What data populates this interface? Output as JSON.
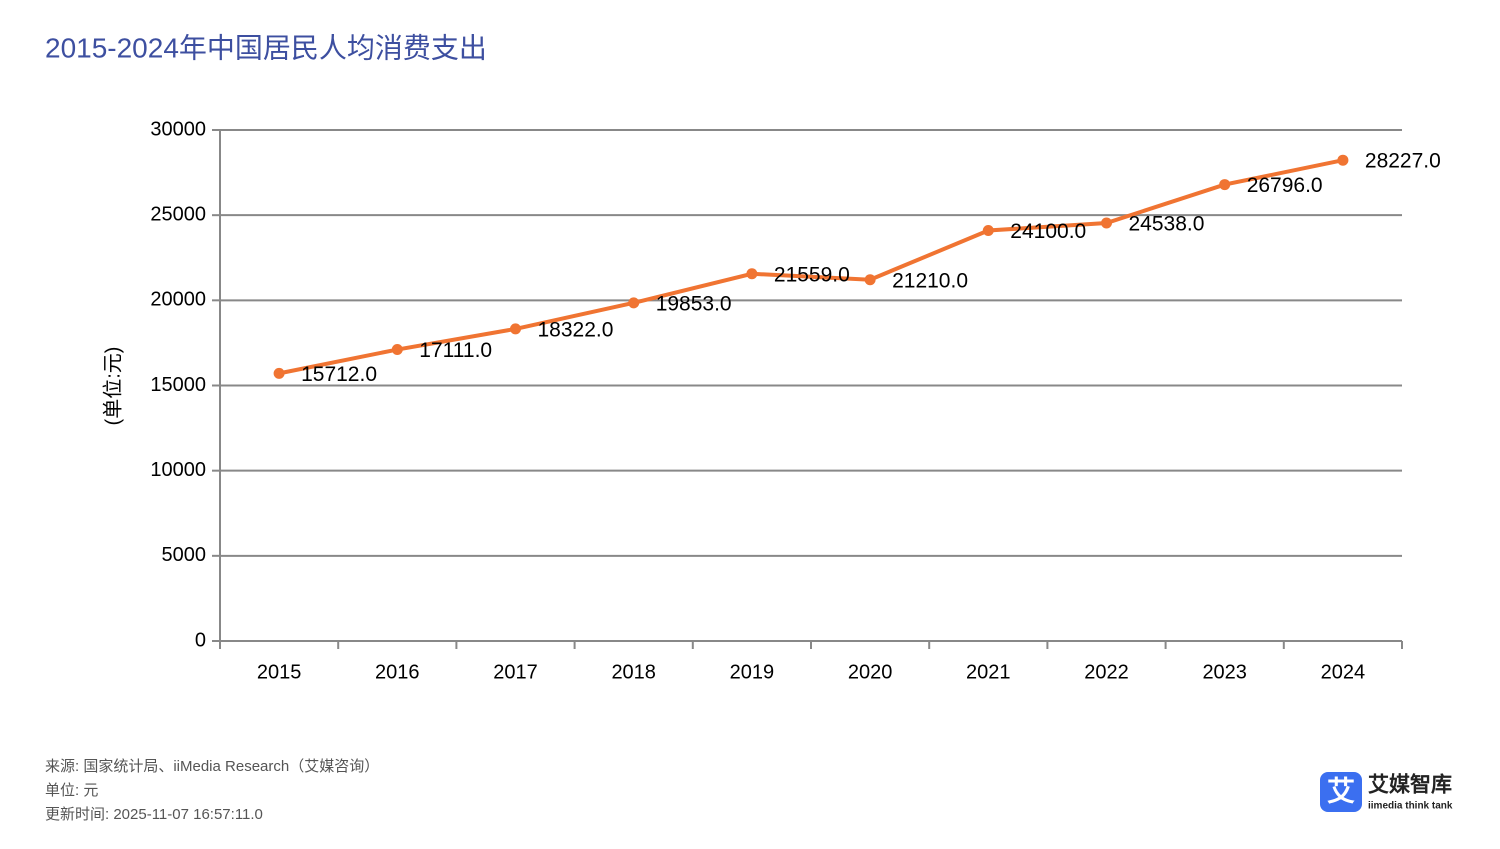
{
  "chart_data": {
    "type": "line",
    "title": "2015-2024年中国居民人均消费支出",
    "y_label": "(单位:元)",
    "categories": [
      "2015",
      "2016",
      "2017",
      "2018",
      "2019",
      "2020",
      "2021",
      "2022",
      "2023",
      "2024"
    ],
    "values": [
      15712,
      17111,
      18322,
      19853,
      21559,
      21210,
      24100,
      24538,
      26796,
      28227
    ],
    "value_labels": [
      "15712.0",
      "17111.0",
      "18322.0",
      "19853.0",
      "21559.0",
      "21210.0",
      "24100.0",
      "24538.0",
      "26796.0",
      "28227.0"
    ],
    "color": "#f07432",
    "ylim": [
      0,
      30000
    ],
    "yticks": [
      0,
      5000,
      10000,
      15000,
      20000,
      25000,
      30000
    ],
    "grid": true
  },
  "footer": {
    "source": "来源: 国家统计局、iiMedia Research（艾媒咨询）",
    "unit": "单位: 元",
    "updated": "更新时间: 2025-11-07 16:57:11.0"
  },
  "logo": {
    "icon": "艾",
    "name": "艾媒智库",
    "tagline": "iimedia think tank"
  }
}
